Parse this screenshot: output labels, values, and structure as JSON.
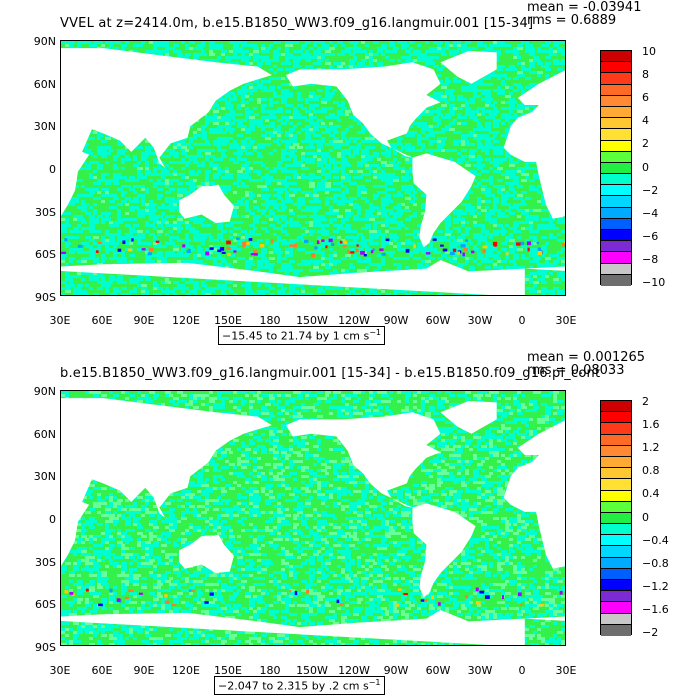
{
  "chart_data": [
    {
      "type": "heatmap",
      "title": "VVEL at z=2414.0m, b.e15.B1850_WW3.f09_g16.langmuir.001 [15-34]",
      "mean_text": "mean = -0.03941",
      "rms_text": "rms = 0.6889",
      "lat_ticks": [
        "90N",
        "60N",
        "30N",
        "0",
        "30S",
        "60S",
        "90S"
      ],
      "lon_ticks": [
        "30E",
        "60E",
        "90E",
        "120E",
        "150E",
        "180",
        "150W",
        "120W",
        "90W",
        "60W",
        "30W",
        "0",
        "30E"
      ],
      "range_text": "−15.45 to 21.74 by 1 cm s",
      "range_exp": "−1",
      "colorbar_labels": [
        "10",
        "8",
        "6",
        "4",
        "2",
        "0",
        "−2",
        "−4",
        "−6",
        "−8",
        "−10"
      ],
      "colorbar_levels": 20,
      "xlim": [
        "30E",
        "30E"
      ],
      "ylim": [
        "90S",
        "90N"
      ]
    },
    {
      "type": "heatmap",
      "title": "b.e15.B1850_WW3.f09_g16.langmuir.001 [15-34] - b.e15.B1850.f09_g16.pi_cont",
      "mean_text": "mean = 0.001265",
      "rms_text": "rms = 0.08033",
      "lat_ticks": [
        "90N",
        "60N",
        "30N",
        "0",
        "30S",
        "60S",
        "90S"
      ],
      "lon_ticks": [
        "30E",
        "60E",
        "90E",
        "120E",
        "150E",
        "180",
        "150W",
        "120W",
        "90W",
        "60W",
        "30W",
        "0",
        "30E"
      ],
      "range_text": "−2.047 to 2.315 by .2 cm s",
      "range_exp": "−1",
      "colorbar_labels": [
        "2",
        "1.6",
        "1.2",
        "0.8",
        "0.4",
        "0",
        "−0.4",
        "−0.8",
        "−1.2",
        "−1.6",
        "−2"
      ],
      "colorbar_levels": 20,
      "xlim": [
        "30E",
        "30E"
      ],
      "ylim": [
        "90S",
        "90N"
      ]
    }
  ],
  "colors": {
    "palette": [
      "#ff0000",
      "#ff2a1a",
      "#ff4a1f",
      "#ff7a26",
      "#ff9a33",
      "#ffb833",
      "#ffd433",
      "#ffff00",
      "#a8ff3c",
      "#3cf04a",
      "#33ff80",
      "#00ffd0",
      "#00ffff",
      "#00d8ff",
      "#00a8ff",
      "#1e64ff",
      "#0000ff",
      "#6a2ad0",
      "#aa00ff",
      "#ff00ff"
    ],
    "colorbar_top": [
      "#cc0000",
      "#ff0000",
      "#ff3a1a",
      "#ff6a26",
      "#ff8a33",
      "#ffaa33",
      "#ffc833",
      "#ffe033",
      "#ffff00",
      "#5cff3c",
      "#22ee44",
      "#00ffcc",
      "#00ffff",
      "#00d8ff",
      "#00aaff",
      "#0060ff",
      "#0000ff",
      "#7b2ad4",
      "#ff00ff",
      "#c8c8c8",
      "#6e6e6e"
    ],
    "land": "#ffffff",
    "ocean_base": "#33f04a",
    "ocean_alt": "#00ffd0"
  }
}
